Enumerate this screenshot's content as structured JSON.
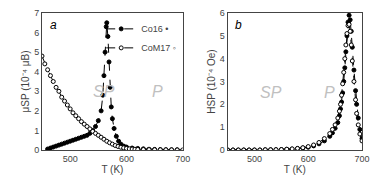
{
  "chart_data": [
    {
      "type": "line",
      "title": "a",
      "xlabel": "T (K)",
      "ylabel": "μSP (10⁻⁴ μB)",
      "xlim": [
        450,
        700
      ],
      "ylim": [
        0,
        7
      ],
      "xticks": [
        500,
        600,
        700
      ],
      "yticks": [
        0,
        1,
        2,
        3,
        4,
        5,
        6,
        7
      ],
      "legend": "upper right",
      "annotations": [
        {
          "text": "SP",
          "x": 560,
          "y": 3.0,
          "color": "#c0c0c0"
        },
        {
          "text": "P",
          "x": 655,
          "y": 3.0,
          "color": "#c0c0c0"
        }
      ],
      "series": [
        {
          "name": "Co16 •",
          "color": "black",
          "marker": "filled circle",
          "line_style": "dashed",
          "x": [
            460,
            465,
            470,
            475,
            480,
            485,
            490,
            495,
            500,
            505,
            510,
            515,
            520,
            525,
            530,
            535,
            540,
            545,
            550,
            555,
            558,
            560,
            562,
            564,
            565,
            567,
            569,
            571,
            573,
            575,
            578,
            582,
            586,
            590,
            595,
            600,
            610,
            620,
            630,
            640,
            650,
            660,
            670,
            680,
            690
          ],
          "values": [
            0.05,
            0.1,
            0.15,
            0.2,
            0.25,
            0.3,
            0.35,
            0.4,
            0.45,
            0.5,
            0.55,
            0.6,
            0.65,
            0.7,
            0.75,
            0.85,
            1.0,
            1.2,
            1.5,
            2.0,
            2.8,
            3.8,
            5.0,
            6.3,
            6.5,
            5.8,
            4.5,
            3.2,
            2.2,
            1.6,
            1.1,
            0.7,
            0.45,
            0.3,
            0.2,
            0.15,
            0.1,
            0.08,
            0.06,
            0.04,
            0.03,
            0.02,
            0.015,
            0.01,
            0.008
          ]
        },
        {
          "name": "CoM17 ◦",
          "color": "black",
          "marker": "open circle",
          "line_style": "dashed",
          "x": [
            450,
            455,
            460,
            465,
            470,
            475,
            480,
            485,
            490,
            495,
            500,
            505,
            510,
            515,
            520,
            525,
            530,
            535,
            540,
            545,
            550,
            555,
            560,
            565,
            570,
            575,
            580,
            585,
            590,
            595,
            600,
            605,
            610,
            615,
            620,
            630,
            640,
            650,
            660,
            670,
            680,
            690,
            700
          ],
          "values": [
            4.8,
            4.4,
            4.1,
            3.8,
            3.5,
            3.2,
            3.0,
            2.7,
            2.5,
            2.3,
            2.1,
            1.9,
            1.75,
            1.6,
            1.45,
            1.32,
            1.2,
            1.08,
            0.95,
            0.85,
            0.75,
            0.65,
            0.55,
            0.45,
            0.37,
            0.3,
            0.23,
            0.18,
            0.14,
            0.11,
            0.08,
            0.06,
            0.05,
            0.04,
            0.03,
            0.025,
            0.02,
            0.015,
            0.012,
            0.01,
            0.008,
            0.006,
            0.005
          ]
        }
      ]
    },
    {
      "type": "line",
      "title": "b",
      "xlabel": "T (K)",
      "ylabel": "HSP (10⁻⁴ Oe)",
      "xlim": [
        450,
        700
      ],
      "ylim": [
        0,
        6
      ],
      "xticks": [
        500,
        600,
        700
      ],
      "yticks": [
        0,
        1,
        2,
        3,
        4,
        5,
        6
      ],
      "annotations": [
        {
          "text": "SP",
          "x": 530,
          "y": 2.5,
          "color": "#c0c0c0"
        },
        {
          "text": "P",
          "x": 640,
          "y": 2.5,
          "color": "#c0c0c0"
        }
      ],
      "series": [
        {
          "name": "Co16 •",
          "color": "black",
          "marker": "filled circle",
          "line_style": "dashed",
          "x": [
            450,
            460,
            470,
            480,
            490,
            500,
            510,
            520,
            530,
            540,
            550,
            560,
            570,
            580,
            590,
            600,
            610,
            620,
            630,
            640,
            645,
            650,
            655,
            658,
            660,
            662,
            664,
            666,
            668,
            670,
            672,
            674,
            676,
            678,
            680,
            682,
            685,
            688,
            690,
            693,
            696,
            700
          ],
          "values": [
            0.0,
            0.0,
            0.0,
            0.0,
            0.0,
            0.0,
            0.0,
            0.01,
            0.01,
            0.01,
            0.02,
            0.03,
            0.04,
            0.06,
            0.09,
            0.12,
            0.18,
            0.27,
            0.4,
            0.6,
            0.75,
            0.95,
            1.2,
            1.5,
            1.8,
            2.1,
            2.5,
            3.0,
            3.6,
            4.3,
            5.0,
            5.6,
            5.9,
            5.7,
            5.2,
            4.5,
            3.5,
            2.6,
            2.0,
            1.4,
            0.9,
            0.5
          ]
        },
        {
          "name": "CoM17 ◦",
          "color": "black",
          "marker": "open circle",
          "line_style": "dashed",
          "x": [
            450,
            460,
            470,
            480,
            490,
            500,
            510,
            520,
            530,
            540,
            550,
            560,
            570,
            580,
            590,
            600,
            610,
            620,
            630,
            640,
            645,
            650,
            655,
            658,
            660,
            662,
            664,
            666,
            668,
            670,
            672,
            674,
            676,
            678,
            680,
            682,
            685,
            688,
            690,
            693,
            696,
            700
          ],
          "values": [
            0.0,
            0.0,
            0.0,
            0.0,
            0.0,
            0.0,
            0.0,
            0.01,
            0.01,
            0.015,
            0.02,
            0.035,
            0.05,
            0.07,
            0.1,
            0.15,
            0.22,
            0.33,
            0.5,
            0.72,
            0.9,
            1.1,
            1.4,
            1.7,
            2.0,
            2.4,
            2.9,
            3.4,
            4.0,
            4.6,
            5.1,
            5.45,
            5.5,
            5.2,
            4.6,
            3.9,
            3.0,
            2.2,
            1.6,
            1.1,
            0.7,
            0.4
          ]
        }
      ]
    }
  ]
}
